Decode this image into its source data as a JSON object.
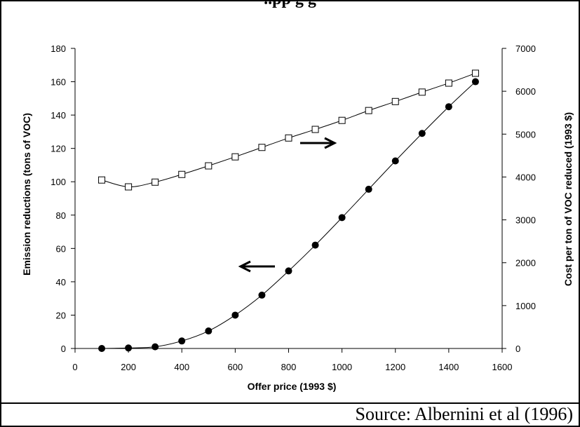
{
  "header": {
    "title": "..pp g g"
  },
  "footer": {
    "source": "Source: Albernini et al (1996)"
  },
  "chart_data": {
    "type": "line",
    "x": [
      100,
      200,
      300,
      400,
      500,
      600,
      700,
      800,
      900,
      1000,
      1100,
      1200,
      1300,
      1400,
      1500
    ],
    "xlabel": "Offer price (1993 $)",
    "ylabel": "Emission reductions (tons of VOC)",
    "y2label": "Cost per ton of VOC reduced (1993 $)",
    "xlim": [
      0,
      1600
    ],
    "ylim": [
      0,
      180
    ],
    "y2lim": [
      0,
      7000
    ],
    "x_ticks": [
      0,
      200,
      400,
      600,
      800,
      1000,
      1200,
      1400,
      1600
    ],
    "y_ticks": [
      0,
      20,
      40,
      60,
      80,
      100,
      120,
      140,
      160,
      180
    ],
    "y2_ticks": [
      0,
      1000,
      2000,
      3000,
      4000,
      5000,
      6000,
      7000
    ],
    "grid": false,
    "series": [
      {
        "axis": "left",
        "marker": "filled-circle",
        "values": [
          0,
          0.3,
          1,
          4.5,
          10.5,
          20,
          32,
          46.5,
          62,
          78.5,
          95.5,
          112.5,
          129,
          145,
          160
        ]
      },
      {
        "axis": "right",
        "marker": "open-square",
        "values": [
          3930,
          3770,
          3880,
          4060,
          4260,
          4470,
          4690,
          4910,
          5110,
          5320,
          5550,
          5760,
          5980,
          6190,
          6420
        ]
      }
    ],
    "annotations": [
      {
        "type": "arrow",
        "direction": "right",
        "points_to": "right axis series"
      },
      {
        "type": "arrow",
        "direction": "left",
        "points_to": "left axis series"
      }
    ]
  }
}
